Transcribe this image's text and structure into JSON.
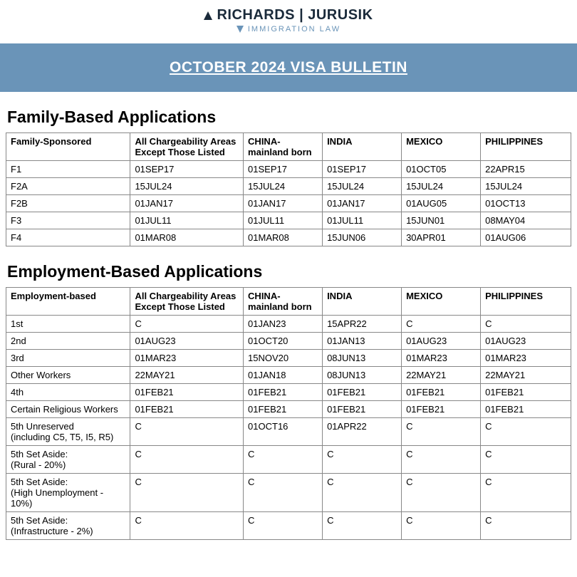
{
  "logo": {
    "main": "RICHARDS | JURUSIK",
    "sub": "IMMIGRATION LAW"
  },
  "banner_title": "OCTOBER 2024 VISA BULLETIN",
  "colors": {
    "banner_bg": "#6a94b8",
    "banner_text": "#ffffff",
    "logo_main": "#1a2a3a",
    "logo_sub": "#6a94b8",
    "border": "#888888",
    "bg": "#ffffff"
  },
  "family": {
    "title": "Family-Based Applications",
    "columns": [
      "Family-Sponsored",
      "All Chargeability Areas Except Those Listed",
      "CHINA-mainland born",
      "INDIA",
      "MEXICO",
      "PHILIPPINES"
    ],
    "rows": [
      [
        "F1",
        "01SEP17",
        "01SEP17",
        "01SEP17",
        "01OCT05",
        "22APR15"
      ],
      [
        "F2A",
        "15JUL24",
        "15JUL24",
        "15JUL24",
        "15JUL24",
        "15JUL24"
      ],
      [
        "F2B",
        "01JAN17",
        "01JAN17",
        "01JAN17",
        "01AUG05",
        "01OCT13"
      ],
      [
        "F3",
        "01JUL11",
        "01JUL11",
        "01JUL11",
        "15JUN01",
        "08MAY04"
      ],
      [
        "F4",
        "01MAR08",
        "01MAR08",
        "15JUN06",
        "30APR01",
        "01AUG06"
      ]
    ]
  },
  "employment": {
    "title": "Employment-Based Applications",
    "columns": [
      "Employment-based",
      "All Chargeability Areas Except Those Listed",
      "CHINA-mainland born",
      "INDIA",
      "MEXICO",
      "PHILIPPINES"
    ],
    "rows": [
      [
        "1st",
        "C",
        "01JAN23",
        "15APR22",
        "C",
        "C"
      ],
      [
        "2nd",
        "01AUG23",
        "01OCT20",
        "01JAN13",
        "01AUG23",
        "01AUG23"
      ],
      [
        "3rd",
        "01MAR23",
        "15NOV20",
        "08JUN13",
        "01MAR23",
        "01MAR23"
      ],
      [
        "Other Workers",
        "22MAY21",
        "01JAN18",
        "08JUN13",
        "22MAY21",
        "22MAY21"
      ],
      [
        "4th",
        "01FEB21",
        "01FEB21",
        "01FEB21",
        "01FEB21",
        "01FEB21"
      ],
      [
        "Certain Religious Workers",
        "01FEB21",
        "01FEB21",
        "01FEB21",
        "01FEB21",
        "01FEB21"
      ],
      [
        "5th Unreserved\n(including C5, T5, I5, R5)",
        "C",
        "01OCT16",
        "01APR22",
        "C",
        "C"
      ],
      [
        "5th Set Aside:\n(Rural - 20%)",
        "C",
        "C",
        "C",
        "C",
        "C"
      ],
      [
        "5th Set Aside:\n(High Unemployment - 10%)",
        "C",
        "C",
        "C",
        "C",
        "C"
      ],
      [
        "5th Set Aside:\n(Infrastructure - 2%)",
        "C",
        "C",
        "C",
        "C",
        "C"
      ]
    ]
  }
}
